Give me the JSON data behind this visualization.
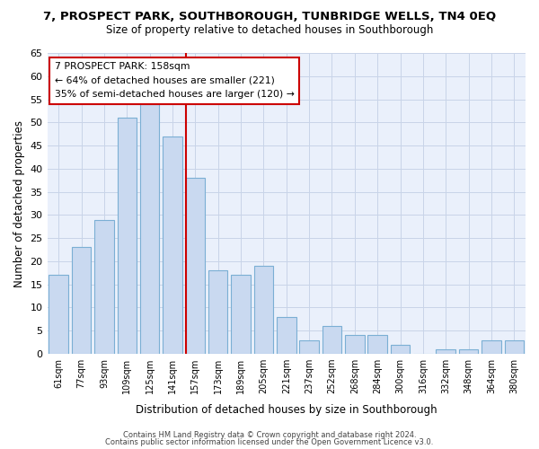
{
  "title": "7, PROSPECT PARK, SOUTHBOROUGH, TUNBRIDGE WELLS, TN4 0EQ",
  "subtitle": "Size of property relative to detached houses in Southborough",
  "xlabel": "Distribution of detached houses by size in Southborough",
  "ylabel": "Number of detached properties",
  "bar_labels": [
    "61sqm",
    "77sqm",
    "93sqm",
    "109sqm",
    "125sqm",
    "141sqm",
    "157sqm",
    "173sqm",
    "189sqm",
    "205sqm",
    "221sqm",
    "237sqm",
    "252sqm",
    "268sqm",
    "284sqm",
    "300sqm",
    "316sqm",
    "332sqm",
    "348sqm",
    "364sqm",
    "380sqm"
  ],
  "bar_values": [
    17,
    23,
    29,
    51,
    54,
    47,
    38,
    18,
    17,
    19,
    8,
    3,
    6,
    4,
    4,
    2,
    0,
    1,
    1,
    3,
    3
  ],
  "bar_color": "#c9d9f0",
  "bar_edge_color": "#7bafd4",
  "vline_color": "#cc0000",
  "ylim": [
    0,
    65
  ],
  "yticks": [
    0,
    5,
    10,
    15,
    20,
    25,
    30,
    35,
    40,
    45,
    50,
    55,
    60,
    65
  ],
  "annotation_title": "7 PROSPECT PARK: 158sqm",
  "annotation_line1": "← 64% of detached houses are smaller (221)",
  "annotation_line2": "35% of semi-detached houses are larger (120) →",
  "annotation_box_color": "#ffffff",
  "annotation_box_edge": "#cc0000",
  "footer_line1": "Contains HM Land Registry data © Crown copyright and database right 2024.",
  "footer_line2": "Contains public sector information licensed under the Open Government Licence v3.0.",
  "background_color": "#ffffff",
  "plot_bg_color": "#eaf0fb",
  "grid_color": "#c8d4e8"
}
